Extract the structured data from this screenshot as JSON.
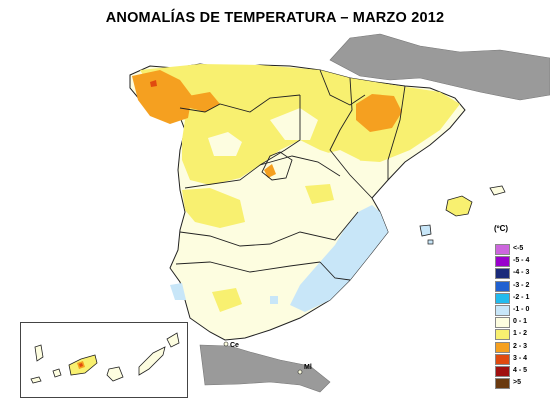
{
  "title": "ANOMALÍAS DE TEMPERATURA – MARZO 2012",
  "legend": {
    "unit": "(ºC)",
    "items": [
      {
        "label": "<-5",
        "color": "#cc66dd"
      },
      {
        "label": "-5 - 4",
        "color": "#9900cc"
      },
      {
        "label": "-4 - 3",
        "color": "#1a2a7a"
      },
      {
        "label": "-3 - 2",
        "color": "#2060d0"
      },
      {
        "label": "-2 - 1",
        "color": "#22bbee"
      },
      {
        "label": "-1 - 0",
        "color": "#c8e6f8"
      },
      {
        "label": "0 - 1",
        "color": "#fdfde0"
      },
      {
        "label": "1 - 2",
        "color": "#f8f070"
      },
      {
        "label": "2 - 3",
        "color": "#f5a020"
      },
      {
        "label": "3 - 4",
        "color": "#e04a10"
      },
      {
        "label": "4 - 5",
        "color": "#a01010"
      },
      {
        "label": ">5",
        "color": "#6a3a10"
      }
    ]
  },
  "places": {
    "ceuta": "Ce",
    "melilla": "Ml"
  },
  "colors": {
    "land_other": "#9a9a9a",
    "sea": "#ffffff",
    "border": "#222222"
  }
}
